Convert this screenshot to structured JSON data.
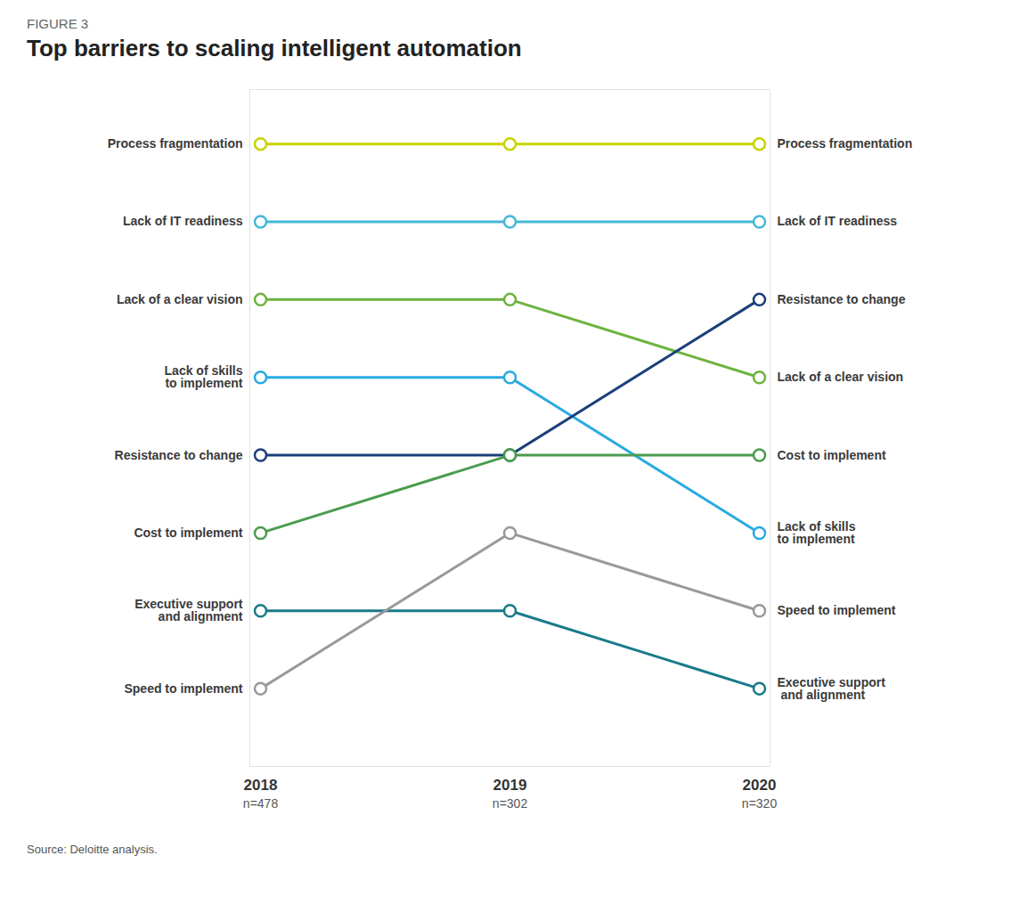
{
  "chart_data": {
    "type": "line",
    "figure_label": "FIGURE 3",
    "title": "Top barriers to scaling intelligent automation",
    "source": "Source: Deloitte analysis.",
    "categories": [
      "2018",
      "2019",
      "2020"
    ],
    "category_notes": [
      "n=478",
      "n=302",
      "n=320"
    ],
    "series": [
      {
        "name": "Process fragmentation",
        "color": "#c8d400",
        "values": [
          1,
          1,
          1
        ],
        "left_label": "Process fragmentation",
        "right_label": "Process fragmentation"
      },
      {
        "name": "Lack of IT readiness",
        "color": "#45b8d8",
        "values": [
          2,
          2,
          2
        ],
        "left_label": "Lack of IT readiness",
        "right_label": "Lack of IT readiness"
      },
      {
        "name": "Lack of a clear vision",
        "color": "#6db33f",
        "values": [
          3,
          3,
          4
        ],
        "left_label": "Lack of a clear vision",
        "right_label": "Lack of a clear vision"
      },
      {
        "name": "Lack of skills to implement",
        "color": "#29aae1",
        "values": [
          4,
          4,
          6
        ],
        "left_label": "Lack of skills\nto implement",
        "right_label": "Lack of skills\nto implement"
      },
      {
        "name": "Resistance to change",
        "color": "#1a3f7a",
        "values": [
          5,
          5,
          3
        ],
        "left_label": "Resistance to change",
        "right_label": "Resistance to change"
      },
      {
        "name": "Cost to implement",
        "color": "#4a9c4e",
        "values": [
          6,
          5,
          5
        ],
        "left_label": "Cost to implement",
        "right_label": "Cost to implement"
      },
      {
        "name": "Executive support and alignment",
        "color": "#1a7a8a",
        "values": [
          7,
          7,
          8
        ],
        "left_label": "Executive support\nand alignment",
        "right_label": "Executive support\n and alignment"
      },
      {
        "name": "Speed to implement",
        "color": "#999999",
        "values": [
          8,
          6,
          7
        ],
        "left_label": "Speed to implement",
        "right_label": "Speed to implement"
      }
    ],
    "ylim": [
      9.0,
      0.3
    ],
    "marker": "circle",
    "grid": false,
    "tick_labels": "x"
  }
}
